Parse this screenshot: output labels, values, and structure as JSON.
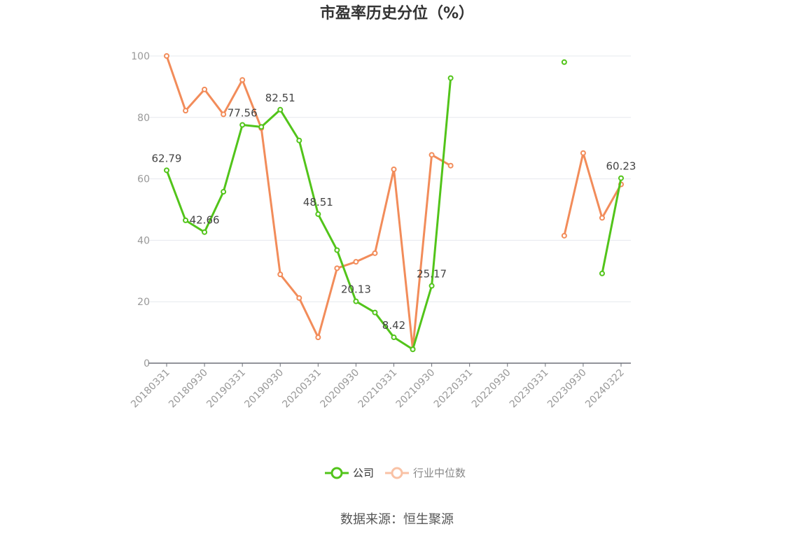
{
  "chart_data": {
    "type": "line",
    "title": "市盈率历史分位（%）",
    "source": "数据来源：恒生聚源",
    "xlabel": "",
    "ylabel": "",
    "ylim": [
      0,
      100
    ],
    "yticks": [
      0,
      20,
      40,
      60,
      80,
      100
    ],
    "grid": true,
    "legend_position": "bottom",
    "categories": [
      "20180331",
      "20180630",
      "20180930",
      "20181231",
      "20190331",
      "20190630",
      "20190930",
      "20191231",
      "20200331",
      "20200630",
      "20200930",
      "20201231",
      "20210331",
      "20210630",
      "20210930",
      "20211231",
      "20220331",
      "20220630",
      "20220930",
      "20221231",
      "20230331",
      "20230630",
      "20230930",
      "20231231",
      "20240322"
    ],
    "tick_labels": [
      "20180331",
      "20180930",
      "20190331",
      "20190930",
      "20200331",
      "20200930",
      "20210331",
      "20210930",
      "20220331",
      "20220930",
      "20230331",
      "20230930",
      "20240322"
    ],
    "tick_indices": [
      0,
      2,
      4,
      6,
      8,
      10,
      12,
      14,
      16,
      18,
      20,
      22,
      24
    ],
    "series": [
      {
        "name": "公司",
        "color": "#52c41a",
        "values": [
          62.79,
          46.5,
          42.66,
          55.8,
          77.56,
          76.9,
          82.51,
          72.5,
          48.51,
          36.8,
          20.13,
          16.5,
          8.42,
          4.5,
          25.17,
          92.8,
          null,
          null,
          null,
          null,
          null,
          98.0,
          null,
          29.2,
          60.23
        ],
        "labels": {
          "0": "62.79",
          "2": "42.66",
          "4": "77.56",
          "6": "82.51",
          "8": "48.51",
          "10": "20.13",
          "12": "8.42",
          "14": "25.17",
          "24": "60.23"
        }
      },
      {
        "name": "行业中位数",
        "color": "#f28c5a",
        "legend_color": "#f9c2a5",
        "values": [
          100.0,
          82.2,
          89.1,
          81.0,
          92.2,
          76.5,
          28.9,
          21.2,
          8.4,
          30.9,
          33.0,
          35.8,
          63.1,
          4.6,
          67.8,
          64.3,
          null,
          null,
          null,
          null,
          null,
          41.5,
          68.4,
          47.3,
          58.2
        ]
      }
    ]
  }
}
